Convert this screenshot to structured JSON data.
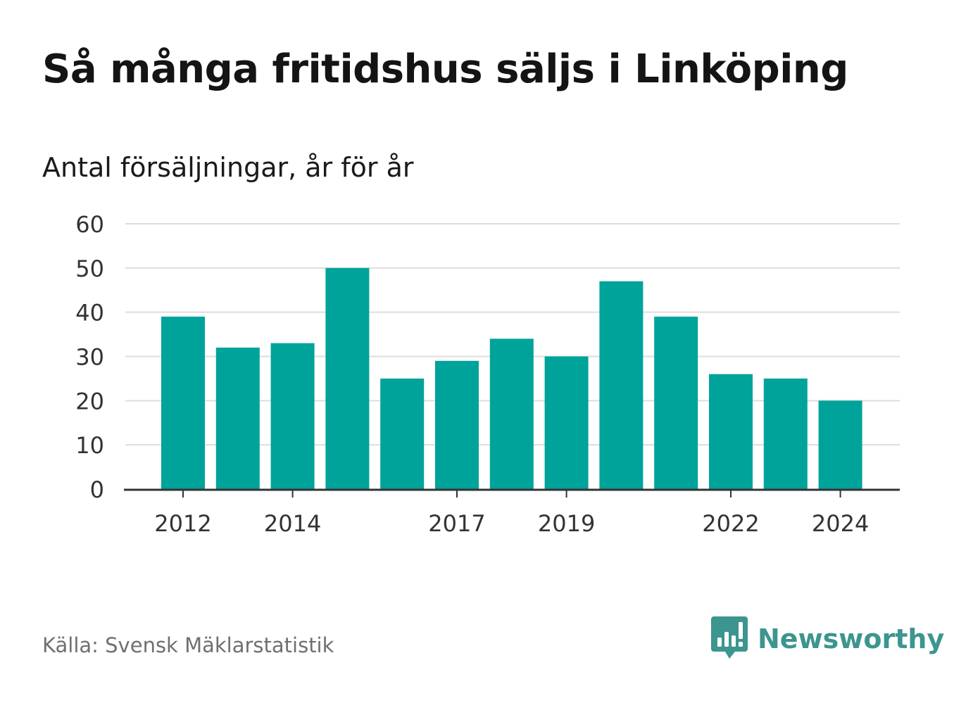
{
  "header": {
    "title": "Så många fritidshus säljs i Linköping",
    "subtitle": "Antal försäljningar, år för år"
  },
  "footer": {
    "source": "Källa: Svensk Mäklarstatistik",
    "brand": "Newsworthy",
    "brand_icon": "bar-chart-speech-bubble-icon"
  },
  "colors": {
    "bar": "#00a39a",
    "grid": "#dddddd",
    "axis": "#333333",
    "brand": "#3d958f"
  },
  "chart_data": {
    "type": "bar",
    "title": "Så många fritidshus säljs i Linköping",
    "ylabel": "Antal försäljningar, år för år",
    "xlabel": "",
    "categories": [
      2012,
      2013,
      2014,
      2015,
      2016,
      2017,
      2018,
      2019,
      2020,
      2021,
      2022,
      2023,
      2024
    ],
    "values": [
      39,
      32,
      33,
      50,
      25,
      29,
      34,
      30,
      47,
      39,
      26,
      25,
      20
    ],
    "x_tick_labels": [
      2012,
      2014,
      2017,
      2019,
      2022,
      2024
    ],
    "ylim": [
      0,
      60
    ],
    "y_ticks": [
      0,
      10,
      20,
      30,
      40,
      50,
      60
    ],
    "grid": true,
    "legend": "none"
  }
}
